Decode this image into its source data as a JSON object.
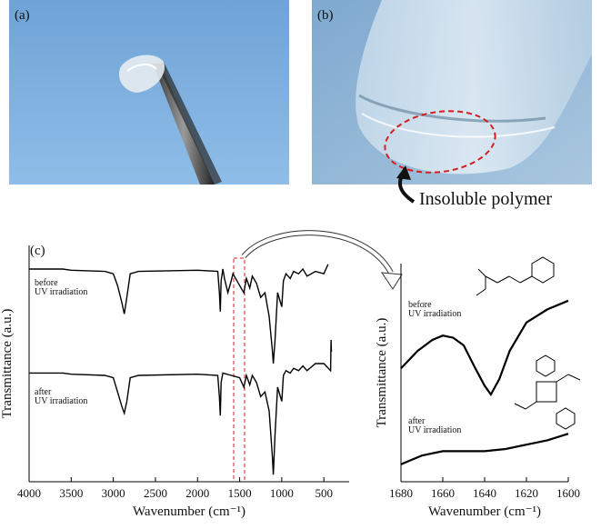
{
  "panels": {
    "a": "(a)",
    "b": "(b)",
    "b_caption": "Insoluble polymer",
    "c": "(c)"
  },
  "chart_data": [
    {
      "type": "line",
      "x_label": "Wavenumber (cm⁻¹)",
      "y_label": "Transmittance (a.u.)",
      "xlim": [
        4000,
        200
      ],
      "xticks": [
        4000,
        3500,
        3000,
        2500,
        2000,
        1500,
        1000,
        500
      ],
      "ylim": [
        0,
        1
      ],
      "annotations": [
        [
          "before",
          "UV irradiation"
        ],
        [
          "after",
          "UV irradiation"
        ]
      ],
      "series": [
        {
          "color": "#000000",
          "x": [
            4000,
            3600,
            3500,
            3100,
            3000,
            2950,
            2900,
            2870,
            2840,
            2800,
            2700,
            2000,
            1760,
            1740,
            1730,
            1720,
            1700,
            1680,
            1640,
            1600,
            1580,
            1500,
            1450,
            1420,
            1380,
            1350,
            1300,
            1250,
            1200,
            1150,
            1110,
            1100,
            1080,
            1050,
            1000,
            980,
            950,
            900,
            860,
            800,
            750,
            700,
            600,
            500,
            450
          ],
          "values": [
            0.9,
            0.9,
            0.895,
            0.89,
            0.88,
            0.83,
            0.76,
            0.71,
            0.78,
            0.88,
            0.89,
            0.895,
            0.89,
            0.8,
            0.72,
            0.85,
            0.9,
            0.86,
            0.8,
            0.85,
            0.88,
            0.83,
            0.8,
            0.86,
            0.82,
            0.87,
            0.84,
            0.78,
            0.8,
            0.7,
            0.55,
            0.5,
            0.6,
            0.8,
            0.74,
            0.85,
            0.88,
            0.86,
            0.89,
            0.88,
            0.9,
            0.87,
            0.89,
            0.88,
            0.92
          ]
        },
        {
          "color": "#000000",
          "x": [
            4000,
            3600,
            3500,
            3100,
            3000,
            2950,
            2900,
            2870,
            2840,
            2800,
            2700,
            2000,
            1760,
            1740,
            1730,
            1720,
            1700,
            1600,
            1500,
            1450,
            1420,
            1380,
            1350,
            1300,
            1250,
            1200,
            1150,
            1110,
            1100,
            1080,
            1050,
            1000,
            980,
            950,
            900,
            860,
            800,
            750,
            700,
            600,
            500,
            420,
            415,
            410
          ],
          "values": [
            0.46,
            0.46,
            0.455,
            0.45,
            0.44,
            0.38,
            0.32,
            0.29,
            0.34,
            0.44,
            0.45,
            0.455,
            0.45,
            0.36,
            0.28,
            0.42,
            0.46,
            0.45,
            0.44,
            0.4,
            0.45,
            0.41,
            0.45,
            0.42,
            0.36,
            0.38,
            0.3,
            0.1,
            0.03,
            0.2,
            0.4,
            0.34,
            0.45,
            0.47,
            0.46,
            0.48,
            0.47,
            0.49,
            0.47,
            0.5,
            0.5,
            0.47,
            0.6,
            0.55
          ]
        }
      ]
    },
    {
      "type": "line",
      "x_label": "Wavenumber (cm⁻¹)",
      "y_label": "Transmittance (a.u.)",
      "xlim": [
        1680,
        1600
      ],
      "xticks": [
        1680,
        1660,
        1640,
        1620,
        1600
      ],
      "ylim": [
        0,
        1
      ],
      "annotations": [
        [
          "before",
          "UV irradiation"
        ],
        [
          "after",
          "UV irradiation"
        ]
      ],
      "series": [
        {
          "color": "#000000",
          "x": [
            1680,
            1672,
            1665,
            1660,
            1655,
            1650,
            1645,
            1640,
            1637,
            1633,
            1628,
            1620,
            1610,
            1600
          ],
          "values": [
            0.52,
            0.6,
            0.65,
            0.67,
            0.66,
            0.625,
            0.53,
            0.44,
            0.4,
            0.47,
            0.6,
            0.73,
            0.79,
            0.83
          ]
        },
        {
          "color": "#000000",
          "x": [
            1680,
            1670,
            1660,
            1650,
            1640,
            1630,
            1620,
            1610,
            1600
          ],
          "values": [
            0.08,
            0.12,
            0.14,
            0.14,
            0.14,
            0.15,
            0.17,
            0.19,
            0.22
          ]
        }
      ]
    }
  ]
}
